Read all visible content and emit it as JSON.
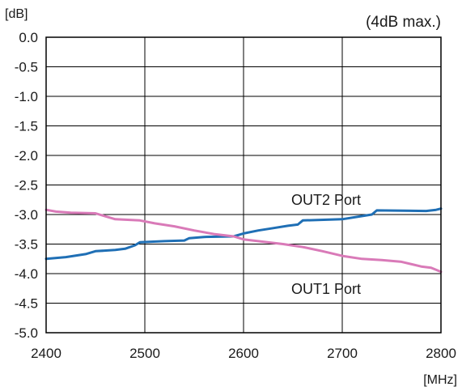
{
  "chart_data": {
    "type": "line",
    "title": "",
    "annotation": "(4dB max.)",
    "xlabel": "[MHz]",
    "ylabel": "[dB]",
    "xlim": [
      2400,
      2800
    ],
    "ylim": [
      -5.0,
      0.0
    ],
    "x_ticks": [
      2400,
      2500,
      2600,
      2700,
      2800
    ],
    "x_tick_labels": [
      "2400",
      "2500",
      "2600",
      "2700",
      "2800"
    ],
    "y_ticks": [
      0.0,
      -0.5,
      -1.0,
      -1.5,
      -2.0,
      -2.5,
      -3.0,
      -3.5,
      -4.0,
      -4.5,
      -5.0
    ],
    "y_tick_labels": [
      "0.0",
      "-0.5",
      "-1.0",
      "-1.5",
      "-2.0",
      "-2.5",
      "-3.0",
      "-3.5",
      "-4.0",
      "-4.5",
      "-5.0"
    ],
    "grid": true,
    "series": [
      {
        "name": "OUT2 Port",
        "color": "#1f6fb5",
        "points": [
          [
            2400,
            -3.75
          ],
          [
            2420,
            -3.72
          ],
          [
            2440,
            -3.67
          ],
          [
            2450,
            -3.62
          ],
          [
            2470,
            -3.6
          ],
          [
            2480,
            -3.58
          ],
          [
            2490,
            -3.52
          ],
          [
            2495,
            -3.47
          ],
          [
            2520,
            -3.45
          ],
          [
            2540,
            -3.44
          ],
          [
            2545,
            -3.4
          ],
          [
            2560,
            -3.38
          ],
          [
            2590,
            -3.37
          ],
          [
            2600,
            -3.32
          ],
          [
            2615,
            -3.27
          ],
          [
            2630,
            -3.23
          ],
          [
            2645,
            -3.19
          ],
          [
            2655,
            -3.17
          ],
          [
            2660,
            -3.1
          ],
          [
            2700,
            -3.08
          ],
          [
            2715,
            -3.04
          ],
          [
            2730,
            -3.0
          ],
          [
            2735,
            -2.93
          ],
          [
            2785,
            -2.94
          ],
          [
            2795,
            -2.92
          ],
          [
            2800,
            -2.9
          ]
        ]
      },
      {
        "name": "OUT1 Port",
        "color": "#d97ab8",
        "points": [
          [
            2400,
            -2.92
          ],
          [
            2410,
            -2.95
          ],
          [
            2425,
            -2.97
          ],
          [
            2450,
            -2.98
          ],
          [
            2460,
            -3.03
          ],
          [
            2470,
            -3.08
          ],
          [
            2495,
            -3.1
          ],
          [
            2510,
            -3.15
          ],
          [
            2530,
            -3.2
          ],
          [
            2550,
            -3.27
          ],
          [
            2570,
            -3.33
          ],
          [
            2590,
            -3.37
          ],
          [
            2600,
            -3.42
          ],
          [
            2620,
            -3.46
          ],
          [
            2640,
            -3.5
          ],
          [
            2660,
            -3.55
          ],
          [
            2680,
            -3.62
          ],
          [
            2700,
            -3.7
          ],
          [
            2720,
            -3.75
          ],
          [
            2740,
            -3.77
          ],
          [
            2760,
            -3.8
          ],
          [
            2780,
            -3.88
          ],
          [
            2790,
            -3.9
          ],
          [
            2800,
            -3.97
          ]
        ]
      }
    ]
  }
}
